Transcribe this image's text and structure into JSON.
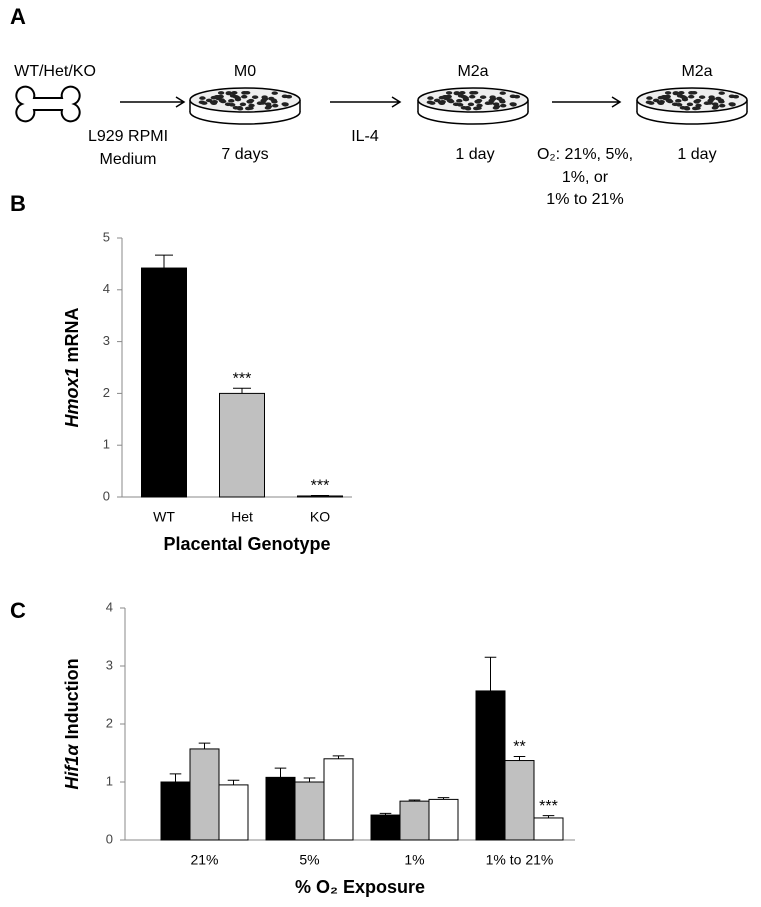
{
  "diagram": {
    "label": "A",
    "source": "WT/Het/KO",
    "steps": [
      {
        "label": "M0",
        "duration": "7 days"
      },
      {
        "label": "M2a",
        "duration": "1 day"
      },
      {
        "label": "M2a",
        "duration": "1 day"
      }
    ],
    "transitions": [
      [
        "L929 RPMI",
        "Medium"
      ],
      [
        "IL-4"
      ],
      [
        "O₂: 21%, 5%,",
        "1%, or",
        "1% to  21%"
      ]
    ]
  },
  "chart_data": [
    {
      "type": "bar",
      "panel_label": "B",
      "categories": [
        "WT",
        "Het",
        "KO"
      ],
      "values": [
        4.42,
        2.0,
        0.02
      ],
      "errors": [
        0.25,
        0.1,
        0.01
      ],
      "colors": [
        "#000000",
        "#c0c0c0",
        "#c0c0c0"
      ],
      "significance": [
        null,
        "***",
        "***"
      ],
      "ylabel": {
        "italic": "Hmox1",
        "rest": " mRNA"
      },
      "xlabel": "Placental Genotype",
      "ylim": [
        0,
        5
      ],
      "yticks": [
        0,
        1,
        2,
        3,
        4,
        5
      ],
      "grid": false
    },
    {
      "type": "bar",
      "panel_label": "C",
      "categories": [
        "21%",
        "5%",
        "1%",
        "1% to 21%"
      ],
      "series": [
        {
          "color": "#000000",
          "values": [
            1.0,
            1.08,
            0.43,
            2.57
          ],
          "errors": [
            0.14,
            0.16,
            0.03,
            0.58
          ],
          "significance": [
            null,
            null,
            null,
            null
          ]
        },
        {
          "color": "#c0c0c0",
          "values": [
            1.57,
            1.0,
            0.67,
            1.37
          ],
          "errors": [
            0.1,
            0.07,
            0.02,
            0.07
          ],
          "significance": [
            null,
            null,
            null,
            "**"
          ]
        },
        {
          "color": "#ffffff",
          "values": [
            0.95,
            1.4,
            0.7,
            0.38
          ],
          "errors": [
            0.08,
            0.05,
            0.03,
            0.04
          ],
          "significance": [
            null,
            null,
            null,
            "***"
          ]
        }
      ],
      "ylabel": {
        "italic": "Hif1α",
        "rest": " Induction"
      },
      "xlabel": "% O₂ Exposure",
      "ylim": [
        0,
        4
      ],
      "yticks": [
        0,
        1,
        2,
        3,
        4
      ],
      "grid": false
    }
  ]
}
